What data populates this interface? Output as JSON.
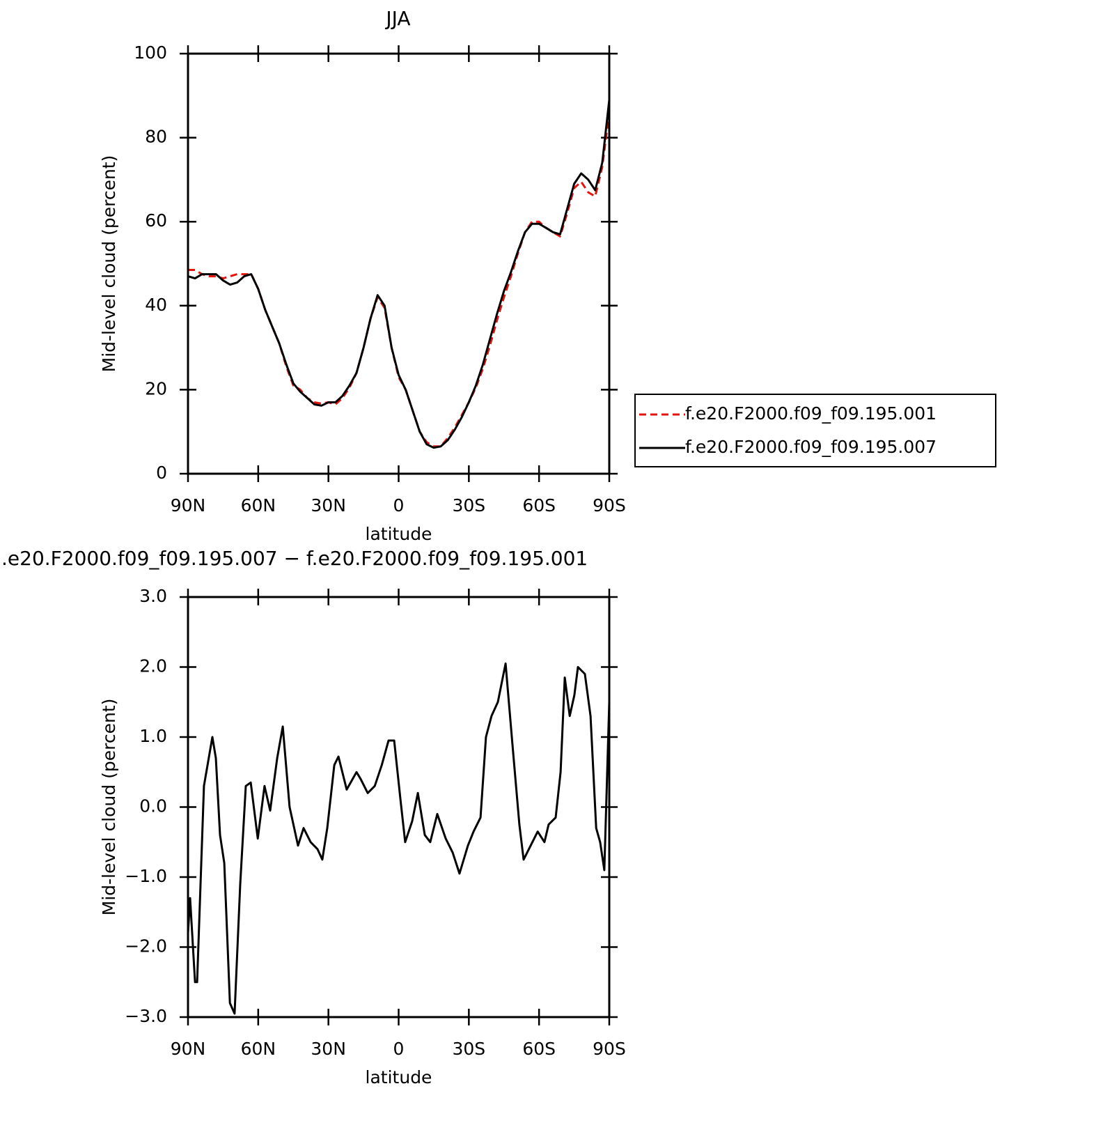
{
  "chart_data": [
    {
      "type": "line",
      "title": "JJA",
      "xlabel": "latitude",
      "ylabel": "Mid-level cloud (percent)",
      "x": [
        90,
        87,
        84,
        81,
        78,
        75,
        72,
        69,
        66,
        63,
        60,
        57,
        54,
        51,
        48,
        45,
        42,
        39,
        36,
        33,
        30,
        27,
        24,
        21,
        18,
        15,
        12,
        9,
        6,
        3,
        0,
        -3,
        -6,
        -9,
        -12,
        -15,
        -18,
        -21,
        -24,
        -27,
        -30,
        -33,
        -36,
        -39,
        -42,
        -45,
        -48,
        -51,
        -54,
        -57,
        -60,
        -63,
        -66,
        -69,
        -72,
        -75,
        -78,
        -81,
        -84,
        -87,
        -90
      ],
      "xlim": [
        90,
        -90
      ],
      "xticks": [
        {
          "value": 90,
          "label": "90N"
        },
        {
          "value": 60,
          "label": "60N"
        },
        {
          "value": 30,
          "label": "30N"
        },
        0,
        {
          "value": -30,
          "label": "30S"
        },
        {
          "value": -60,
          "label": "60S"
        },
        {
          "value": -90,
          "label": "90S"
        }
      ],
      "ylim": [
        0,
        100
      ],
      "yticks": [
        0,
        20,
        40,
        60,
        80,
        100
      ],
      "legend": "right",
      "series": [
        {
          "name": "f.e20.F2000.f09_f09.195.001",
          "color": "#e8130c",
          "style": "dashed",
          "values": [
            48.5,
            48.5,
            47.5,
            47,
            47,
            46.5,
            47,
            47.5,
            47.5,
            47.5,
            44,
            39,
            35,
            31,
            25.5,
            21,
            20,
            18,
            17,
            16.7,
            17,
            16.5,
            18,
            20.5,
            24,
            30,
            37,
            42,
            39.5,
            30,
            23,
            20,
            15,
            10,
            7.5,
            6.5,
            6.5,
            8.5,
            11,
            14,
            17,
            20.5,
            25,
            30.5,
            36.5,
            42,
            47,
            52.5,
            57.5,
            60,
            60,
            58.5,
            57.5,
            56.5,
            62,
            68,
            69.5,
            67,
            66,
            73,
            86
          ]
        },
        {
          "name": "f.e20.F2000.f09_f09.195.007",
          "color": "#000000",
          "style": "solid",
          "values": [
            47,
            46.5,
            47.5,
            47.5,
            47.5,
            46,
            45,
            45.5,
            47,
            47.5,
            44,
            39,
            35,
            31,
            26,
            21.5,
            19.5,
            18,
            16.5,
            16.2,
            17,
            17,
            18.5,
            21,
            24,
            30,
            37,
            42.5,
            40,
            30,
            23.5,
            20,
            15,
            10,
            7,
            6.2,
            6.5,
            8,
            10.5,
            13.5,
            17,
            21,
            26,
            32,
            38,
            43.5,
            48,
            53,
            57.5,
            59.5,
            59.5,
            58.5,
            57.5,
            57,
            63,
            69,
            71.5,
            70,
            67.5,
            74,
            89
          ]
        }
      ]
    },
    {
      "type": "line",
      "title": ".e20.F2000.f09_f09.195.007 − f.e20.F2000.f09_f09.195.001",
      "xlabel": "latitude",
      "ylabel": "Mid-level cloud (percent)",
      "x": [
        90,
        89.1,
        87,
        86.1,
        83.2,
        79.6,
        78.1,
        76.3,
        74.5,
        72.1,
        70.1,
        67.7,
        65.3,
        63.2,
        60.2,
        57.3,
        54.9,
        51.9,
        49.5,
        46.6,
        43,
        40.6,
        37.6,
        34.7,
        32.6,
        30.5,
        27.5,
        25.7,
        22.2,
        18,
        16.2,
        13.2,
        10.2,
        7.2,
        4.3,
        1.9,
        -0.8,
        -2.8,
        -5.8,
        -8.2,
        -11.2,
        -13.5,
        -16.5,
        -20.1,
        -23.1,
        -26,
        -29.6,
        -32,
        -35,
        -37.3,
        -39.7,
        -42.4,
        -45.7,
        -48.6,
        -51.6,
        -53.4,
        -56.4,
        -59.4,
        -62.3,
        -64.1,
        -67.1,
        -69.2,
        -71,
        -73.1,
        -75.1,
        -76.6,
        -79.6,
        -82,
        -84.4,
        -86.1,
        -87.9,
        -90
      ],
      "xlim": [
        90,
        -90
      ],
      "xticks": [
        {
          "value": 90,
          "label": "90N"
        },
        {
          "value": 60,
          "label": "60N"
        },
        {
          "value": 30,
          "label": "30N"
        },
        0,
        {
          "value": -30,
          "label": "30S"
        },
        {
          "value": -60,
          "label": "60S"
        },
        {
          "value": -90,
          "label": "90S"
        }
      ],
      "ylim": [
        -3,
        3
      ],
      "yticks": [
        {
          "value": -3,
          "label": "−3.0"
        },
        {
          "value": -2,
          "label": "−2.0"
        },
        {
          "value": -1,
          "label": "−1.0"
        },
        {
          "value": 0,
          "label": "0.0"
        },
        {
          "value": 1,
          "label": "1.0"
        },
        {
          "value": 2,
          "label": "2.0"
        },
        {
          "value": 3,
          "label": "3.0"
        }
      ],
      "series": [
        {
          "color": "#000000",
          "style": "solid",
          "values": [
            -1.8,
            -1.3,
            -2.5,
            -2.5,
            0.3,
            1.0,
            0.7,
            -0.4,
            -0.8,
            -2.8,
            -2.95,
            -1.1,
            0.3,
            0.35,
            -0.45,
            0.3,
            -0.05,
            0.7,
            1.15,
            0,
            -0.55,
            -0.3,
            -0.5,
            -0.6,
            -0.75,
            -0.3,
            0.6,
            0.72,
            0.25,
            0.5,
            0.4,
            0.2,
            0.3,
            0.6,
            0.95,
            0.95,
            0.1,
            -0.5,
            -0.2,
            0.2,
            -0.4,
            -0.5,
            -0.1,
            -0.45,
            -0.65,
            -0.95,
            -0.55,
            -0.35,
            -0.15,
            1.0,
            1.3,
            1.5,
            2.05,
            0.9,
            -0.25,
            -0.75,
            -0.55,
            -0.35,
            -0.5,
            -0.25,
            -0.15,
            0.5,
            1.85,
            1.3,
            1.6,
            2.0,
            1.9,
            1.3,
            -0.3,
            -0.5,
            -0.9,
            1.5
          ]
        }
      ]
    }
  ]
}
